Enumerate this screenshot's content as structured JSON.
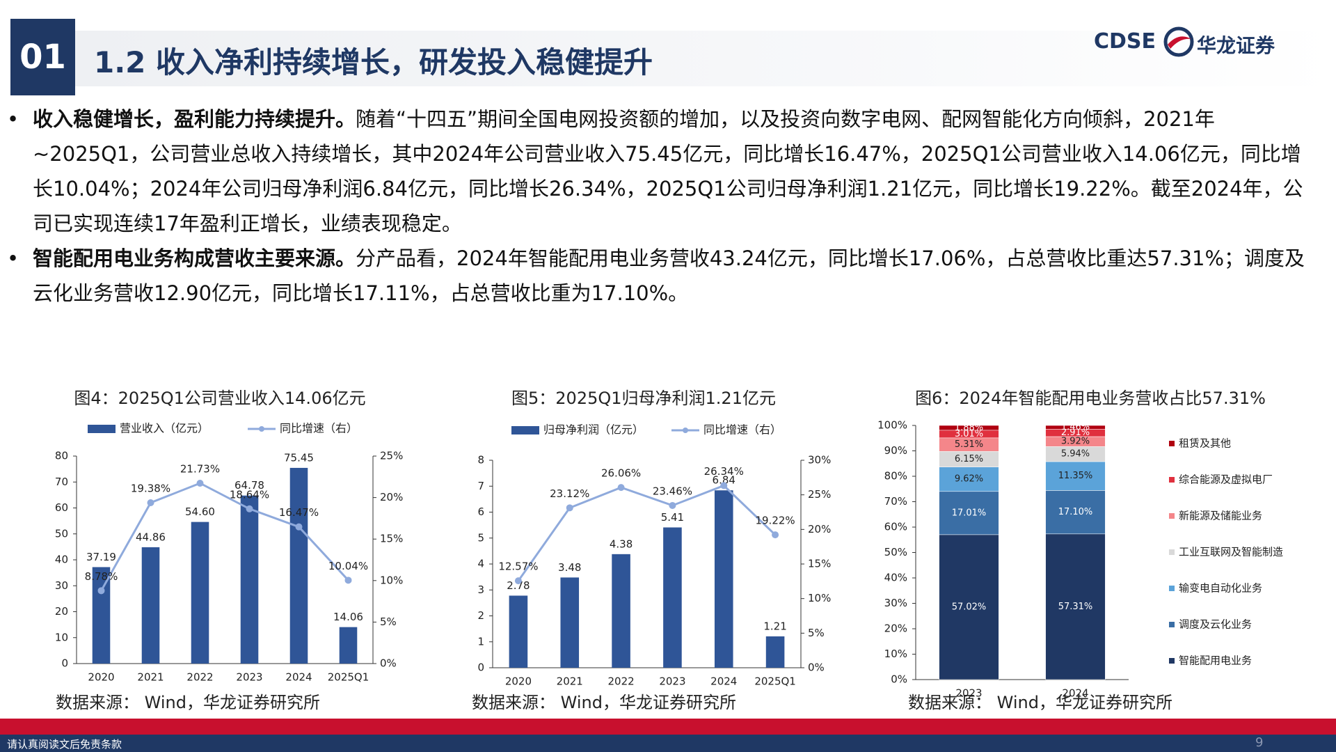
{
  "header": {
    "number": "01",
    "title": "1.2 收入净利持续增长，研发投入稳健提升",
    "logo_en": "CDSE",
    "logo_cn": "华龙证券"
  },
  "bullets": [
    {
      "bold": "收入稳健增长，盈利能力持续提升。",
      "text": "随着“十四五”期间全国电网投资额的增加，以及投资向数字电网、配网智能化方向倾斜，2021年~2025Q1，公司营业总收入持续增长，其中2024年公司营业收入75.45亿元，同比增长16.47%，2025Q1公司营业收入14.06亿元，同比增长10.04%；2024年公司归母净利润6.84亿元，同比增长26.34%，2025Q1公司归母净利润1.21亿元，同比增长19.22%。截至2024年，公司已实现连续17年盈利正增长，业绩表现稳定。"
    },
    {
      "bold": "智能配用电业务构成营收主要来源。",
      "text": "分产品看，2024年智能配用电业务营收43.24亿元，同比增长17.06%，占总营收比重达57.31%；调度及云化业务营收12.90亿元，同比增长17.11%，占总营收比重为17.10%。"
    }
  ],
  "chart_data": [
    {
      "type": "combo",
      "title": "图4：2025Q1公司营业收入14.06亿元",
      "source": "数据来源： Wind，华龙证券研究所",
      "categories": [
        "2020",
        "2021",
        "2022",
        "2023",
        "2024",
        "2025Q1"
      ],
      "series": [
        {
          "name": "营业收入（亿元）",
          "color": "#2f5597",
          "values": [
            37.19,
            44.86,
            54.6,
            64.78,
            75.45,
            14.06
          ],
          "value_labels": [
            "37.19",
            "44.86",
            "54.60",
            "64.78",
            "75.45",
            "14.06"
          ]
        },
        {
          "name": "同比增速（右）",
          "color": "#8faadc",
          "axis": "y2",
          "values": [
            8.78,
            19.38,
            21.73,
            18.64,
            16.47,
            10.04
          ],
          "value_labels": [
            "8.78%",
            "19.38%",
            "21.73%",
            "18.64%",
            "16.47%",
            "10.04%"
          ]
        }
      ],
      "ylim": [
        0,
        80
      ],
      "yticks": [
        0,
        10,
        20,
        30,
        40,
        50,
        60,
        70,
        80
      ],
      "y2lim": [
        0,
        25
      ],
      "y2ticks": [
        {
          "value": 0,
          "label": "0%"
        },
        {
          "value": 5,
          "label": "5%"
        },
        {
          "value": 10,
          "label": "10%"
        },
        {
          "value": 15,
          "label": "15%"
        },
        {
          "value": 20,
          "label": "20%"
        },
        {
          "value": 25,
          "label": "25%"
        }
      ]
    },
    {
      "type": "combo",
      "title": "图5：2025Q1归母净利润1.21亿元",
      "source": "数据来源： Wind，华龙证券研究所",
      "categories": [
        "2020",
        "2021",
        "2022",
        "2023",
        "2024",
        "2025Q1"
      ],
      "series": [
        {
          "name": "归母净利润（亿元）",
          "color": "#2f5597",
          "values": [
            2.78,
            3.48,
            4.38,
            5.41,
            6.84,
            1.21
          ]
        },
        {
          "name": "同比增速（右）",
          "color": "#8faadc",
          "axis": "y2",
          "values": [
            12.57,
            23.12,
            26.06,
            23.46,
            26.34,
            19.22
          ],
          "value_labels": [
            "12.57%",
            "23.12%",
            "26.06%",
            "23.46%",
            "26.34%",
            "19.22%"
          ]
        }
      ],
      "ylim": [
        0,
        8
      ],
      "yticks": [
        0,
        1,
        2,
        3,
        4,
        5,
        6,
        7,
        8
      ],
      "y2lim": [
        0,
        30
      ],
      "y2ticks": [
        {
          "value": 0,
          "label": "0%"
        },
        {
          "value": 5,
          "label": "5%"
        },
        {
          "value": 10,
          "label": "10%"
        },
        {
          "value": 15,
          "label": "15%"
        },
        {
          "value": 20,
          "label": "20%"
        },
        {
          "value": 25,
          "label": "25%"
        },
        {
          "value": 30,
          "label": "30%"
        }
      ]
    },
    {
      "type": "stacked_bar",
      "title": "图6：2024年智能配用电业务营收占比57.31%",
      "source": "数据来源： Wind，华龙证券研究所",
      "categories": [
        "2023",
        "2024"
      ],
      "series": [
        {
          "name": "智能配用电业务",
          "color": "#203864",
          "values": [
            57.02,
            57.31
          ],
          "value_labels": [
            "57.02%",
            "57.31%"
          ]
        },
        {
          "name": "调度及云化业务",
          "color": "#3a6ea5",
          "values": [
            17.01,
            17.1
          ],
          "value_labels": [
            "17.01%",
            "17.10%"
          ]
        },
        {
          "name": "输变电自动化业务",
          "color": "#5ba3d9",
          "values": [
            9.62,
            11.35
          ],
          "value_labels": [
            "9.62%",
            "11.35%"
          ]
        },
        {
          "name": "工业互联网及智能制造",
          "color": "#d9d9d9",
          "values": [
            6.15,
            5.94
          ],
          "value_labels": [
            "6.15%",
            "5.94%"
          ]
        },
        {
          "name": "新能源及储能业务",
          "color": "#f4868a",
          "values": [
            5.31,
            3.92
          ],
          "value_labels": [
            "5.31%",
            "3.92%"
          ]
        },
        {
          "name": "综合能源及虚拟电厂",
          "color": "#e0303e",
          "values": [
            3.01,
            2.91
          ],
          "value_labels": [
            "3.01%",
            "2.91%"
          ]
        },
        {
          "name": "租赁及其他",
          "color": "#b00010",
          "values": [
            1.88,
            1.46
          ],
          "value_labels": [
            "1.88%",
            "1.46%"
          ]
        }
      ],
      "ylim": [
        0,
        100
      ],
      "yticks": [
        {
          "value": 0,
          "label": "0%"
        },
        {
          "value": 10,
          "label": "10%"
        },
        {
          "value": 20,
          "label": "20%"
        },
        {
          "value": 30,
          "label": "30%"
        },
        {
          "value": 40,
          "label": "40%"
        },
        {
          "value": 50,
          "label": "50%"
        },
        {
          "value": 60,
          "label": "60%"
        },
        {
          "value": 70,
          "label": "70%"
        },
        {
          "value": 80,
          "label": "80%"
        },
        {
          "value": 90,
          "label": "90%"
        },
        {
          "value": 100,
          "label": "100%"
        }
      ]
    }
  ],
  "footer": {
    "disclaimer": "请认真阅读文后免责条款",
    "page": "9"
  }
}
